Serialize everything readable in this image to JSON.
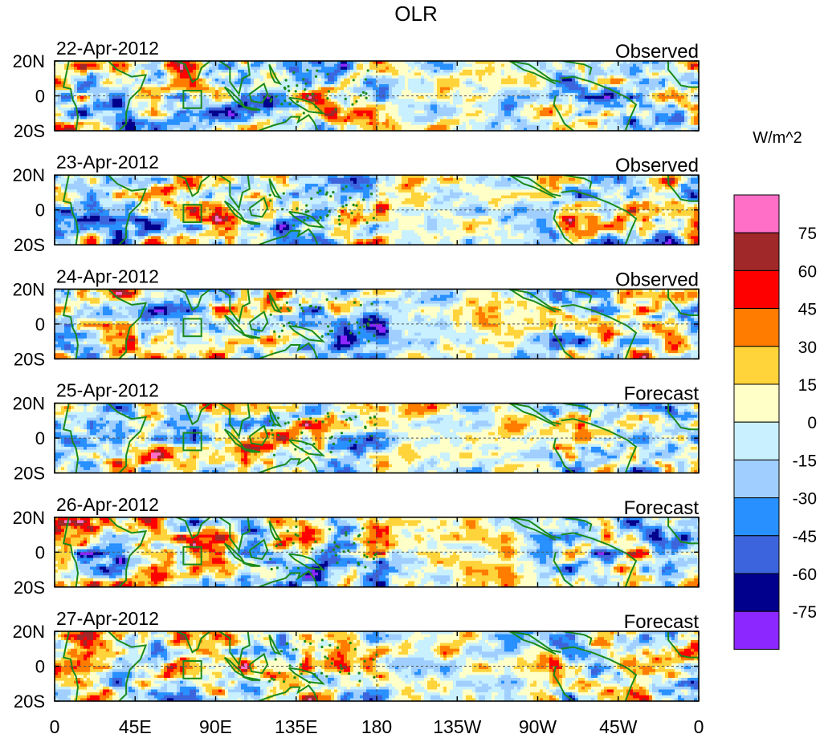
{
  "chart_data": {
    "type": "heatmap",
    "title": "OLR",
    "units": "W/m^2",
    "x_ticks": [
      "0",
      "45E",
      "90E",
      "135E",
      "180",
      "135W",
      "90W",
      "45W",
      "0"
    ],
    "y_ticks": [
      "20N",
      "0",
      "20S"
    ],
    "xlim": [
      0,
      360
    ],
    "ylim": [
      -20,
      20
    ],
    "panels": [
      {
        "date": "22-Apr-2012",
        "kind": "Observed"
      },
      {
        "date": "23-Apr-2012",
        "kind": "Observed"
      },
      {
        "date": "24-Apr-2012",
        "kind": "Observed"
      },
      {
        "date": "25-Apr-2012",
        "kind": "Forecast"
      },
      {
        "date": "26-Apr-2012",
        "kind": "Forecast"
      },
      {
        "date": "27-Apr-2012",
        "kind": "Forecast"
      }
    ],
    "colorbar": {
      "labels": [
        "75",
        "60",
        "45",
        "30",
        "15",
        "0",
        "-15",
        "-30",
        "-45",
        "-60",
        "-75"
      ],
      "colors": [
        "#ff6ec7",
        "#a02828",
        "#ff0000",
        "#ff7c00",
        "#ffd33a",
        "#ffffc8",
        "#c8f0ff",
        "#a0cfff",
        "#2890ff",
        "#3c64dc",
        "#00008c",
        "#8c28ff"
      ]
    }
  }
}
